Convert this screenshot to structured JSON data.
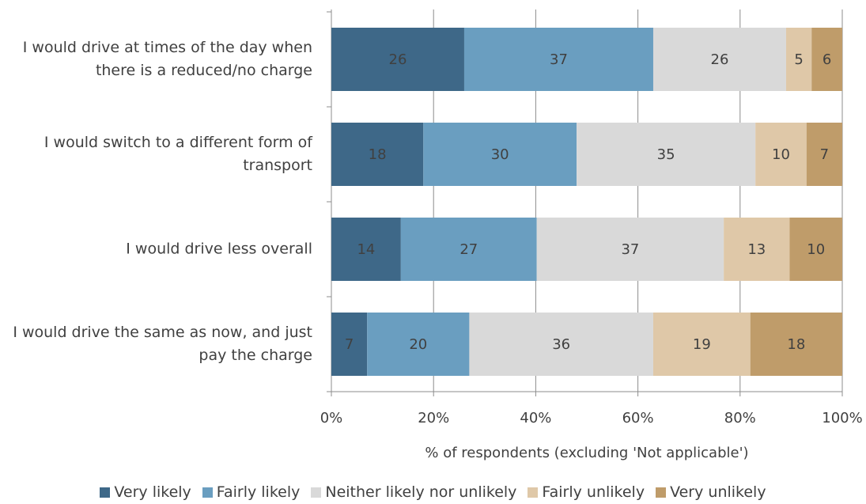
{
  "chart_data": {
    "type": "stacked_bar_horizontal",
    "categories": [
      "I would drive at times of the day when there is a reduced/no charge",
      "I would switch to a different form of transport",
      "I would drive less overall",
      "I would drive the same as now, and just pay the charge"
    ],
    "series": [
      {
        "name": "Very likely",
        "color": "#3e6888",
        "values": [
          26,
          18,
          13.6,
          7
        ],
        "value_labels": [
          "26",
          "18",
          "14",
          "7"
        ]
      },
      {
        "name": "Fairly likely",
        "color": "#6a9ec0",
        "values": [
          37,
          30,
          26.6,
          20
        ],
        "value_labels": [
          "37",
          "30",
          "27",
          "20"
        ]
      },
      {
        "name": "Neither likely nor unlikely",
        "color": "#d9d9d9",
        "values": [
          26,
          35,
          36.6,
          36
        ],
        "value_labels": [
          "26",
          "35",
          "37",
          "36"
        ]
      },
      {
        "name": "Fairly unlikely",
        "color": "#dfc8a8",
        "values": [
          5,
          10,
          12.9,
          19
        ],
        "value_labels": [
          "5",
          "10",
          "13",
          "19"
        ]
      },
      {
        "name": "Very unlikely",
        "color": "#bf9c6a",
        "values": [
          6,
          7,
          10.3,
          18
        ],
        "value_labels": [
          "6",
          "7",
          "10",
          "18"
        ]
      }
    ],
    "x_label": "% of respondents (excluding 'Not applicable')",
    "xlim": [
      0,
      100
    ],
    "xticks": [
      {
        "value": 0,
        "label": "0%"
      },
      {
        "value": 20,
        "label": "20%"
      },
      {
        "value": 40,
        "label": "40%"
      },
      {
        "value": 60,
        "label": "60%"
      },
      {
        "value": 80,
        "label": "80%"
      },
      {
        "value": 100,
        "label": "100%"
      }
    ],
    "grid": true,
    "legend": "bottom"
  }
}
